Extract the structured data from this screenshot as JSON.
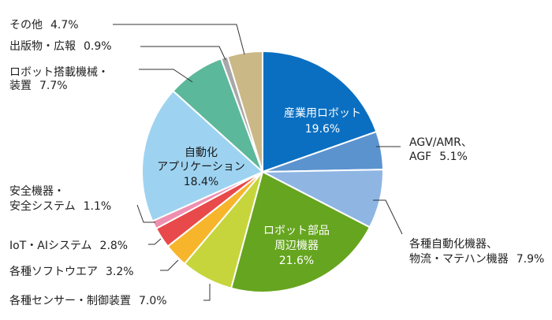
{
  "chart_data": {
    "type": "pie",
    "title": "",
    "slices": [
      {
        "label_lines": [
          "産業用ロボット"
        ],
        "value_text": "19.6%",
        "value": 19.6,
        "color": "#0a6fc1",
        "label_pos": "inside"
      },
      {
        "label_lines": [
          "AGV/AMR、",
          "AGF"
        ],
        "value_text": "5.1%",
        "value": 5.1,
        "color": "#5b93cf",
        "label_pos": "outside"
      },
      {
        "label_lines": [
          "各種自動化機器、",
          "物流・マテハン機器"
        ],
        "value_text": "7.9%",
        "value": 7.9,
        "color": "#8fb6e3",
        "label_pos": "outside"
      },
      {
        "label_lines": [
          "ロボット部品",
          "周辺機器"
        ],
        "value_text": "21.6%",
        "value": 21.6,
        "color": "#66a51f",
        "label_pos": "inside"
      },
      {
        "label_lines": [
          "各種センサー・制御装置"
        ],
        "value_text": "7.0%",
        "value": 7.0,
        "color": "#c6d53c",
        "label_pos": "outside"
      },
      {
        "label_lines": [
          "各種ソフトウエア"
        ],
        "value_text": "3.2%",
        "value": 3.2,
        "color": "#f7b52c",
        "label_pos": "outside"
      },
      {
        "label_lines": [
          "IoT・AIシステム"
        ],
        "value_text": "2.8%",
        "value": 2.8,
        "color": "#e8494b",
        "label_pos": "outside"
      },
      {
        "label_lines": [
          "安全機器・",
          "安全システム"
        ],
        "value_text": "1.1%",
        "value": 1.1,
        "color": "#ef8fb0",
        "label_pos": "outside"
      },
      {
        "label_lines": [
          "自動化",
          "アプリケーション"
        ],
        "value_text": "18.4%",
        "value": 18.4,
        "color": "#9dd3f1",
        "label_pos": "inside"
      },
      {
        "label_lines": [
          "ロボット搭載機械・",
          "装置"
        ],
        "value_text": "7.7%",
        "value": 7.7,
        "color": "#5cb89a",
        "label_pos": "outside"
      },
      {
        "label_lines": [
          "出版物・広報"
        ],
        "value_text": "0.9%",
        "value": 0.9,
        "color": "#a8a8a8",
        "label_pos": "outside"
      },
      {
        "label_lines": [
          "その他"
        ],
        "value_text": "4.7%",
        "value": 4.7,
        "color": "#cbb887",
        "label_pos": "outside"
      }
    ]
  }
}
